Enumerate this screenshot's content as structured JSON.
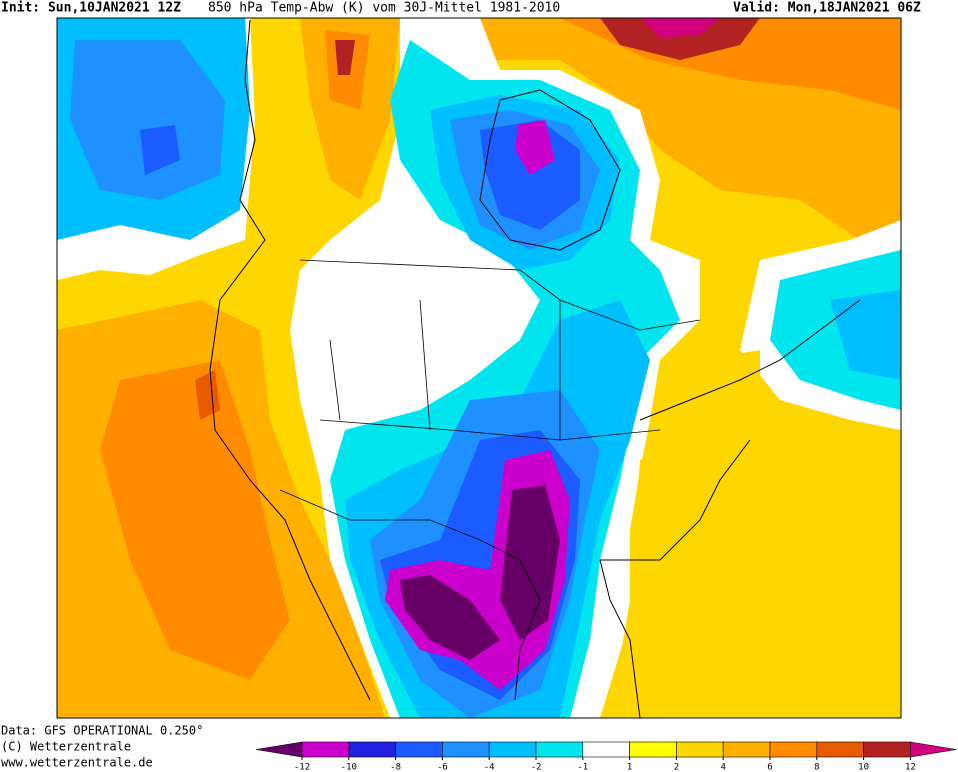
{
  "header": {
    "init": "Init: Sun,10JAN2021 12Z",
    "title": "850 hPa Temp-Abw (K) vom 30J-Mittel 1981-2010",
    "valid": "Valid: Mon,18JAN2021 06Z"
  },
  "footer": {
    "data": "Data: GFS OPERATIONAL 0.250°",
    "copyright": "(C) Wetterzentrale",
    "url": "www.wetterzentrale.de"
  },
  "colorbar": {
    "ticks": [
      -12,
      -10,
      -8,
      -6,
      -4,
      -2,
      -1,
      1,
      2,
      4,
      6,
      8,
      10,
      12
    ],
    "colors": [
      "#660066",
      "#cc00cc",
      "#2020e0",
      "#1a5cff",
      "#1e90ff",
      "#00bfff",
      "#00e5ee",
      "#ffffff",
      "#ffff00",
      "#ffd700",
      "#ffb000",
      "#ff8c00",
      "#e85a00",
      "#b22222",
      "#d3007e"
    ]
  }
}
